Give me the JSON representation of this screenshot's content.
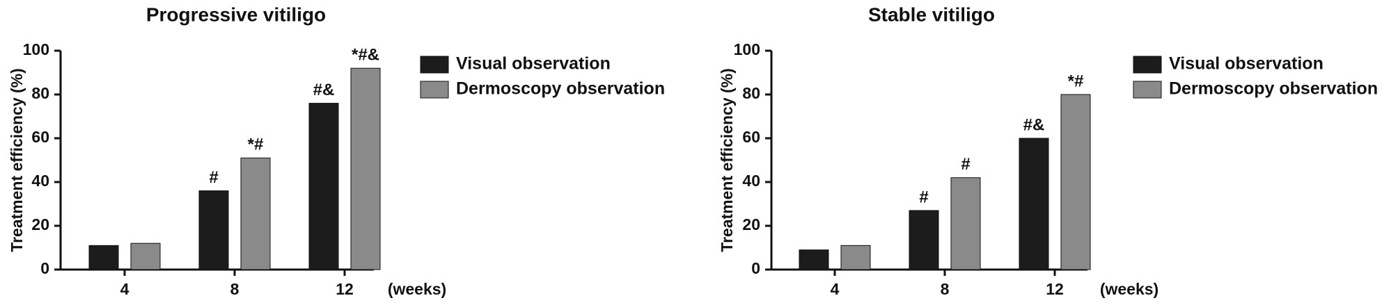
{
  "chart_data": [
    {
      "type": "bar",
      "title": "Progressive vitiligo",
      "y_label": "Treatment efficiency (%)",
      "x_unit_label": "(weeks)",
      "categories": [
        "4",
        "8",
        "12"
      ],
      "series": [
        {
          "name": "Visual observation",
          "color": "#1c1c1c",
          "values": [
            11,
            36,
            76
          ],
          "annotations": [
            null,
            "#",
            "#&"
          ]
        },
        {
          "name": "Dermoscopy observation",
          "color": "#8a8a8a",
          "values": [
            12,
            51,
            92
          ],
          "annotations": [
            null,
            "*#",
            "*#&"
          ]
        }
      ],
      "ylim": [
        0,
        100
      ],
      "yticks": [
        0,
        20,
        40,
        60,
        80,
        100
      ]
    },
    {
      "type": "bar",
      "title": "Stable vitiligo",
      "y_label": "Treatment efficiency (%)",
      "x_unit_label": "(weeks)",
      "categories": [
        "4",
        "8",
        "12"
      ],
      "series": [
        {
          "name": "Visual observation",
          "color": "#1c1c1c",
          "values": [
            9,
            27,
            60
          ],
          "annotations": [
            null,
            "#",
            "#&"
          ]
        },
        {
          "name": "Dermoscopy observation",
          "color": "#8a8a8a",
          "values": [
            11,
            42,
            80
          ],
          "annotations": [
            null,
            "#",
            "*#"
          ]
        }
      ],
      "ylim": [
        0,
        100
      ],
      "yticks": [
        0,
        20,
        40,
        60,
        80,
        100
      ]
    }
  ]
}
